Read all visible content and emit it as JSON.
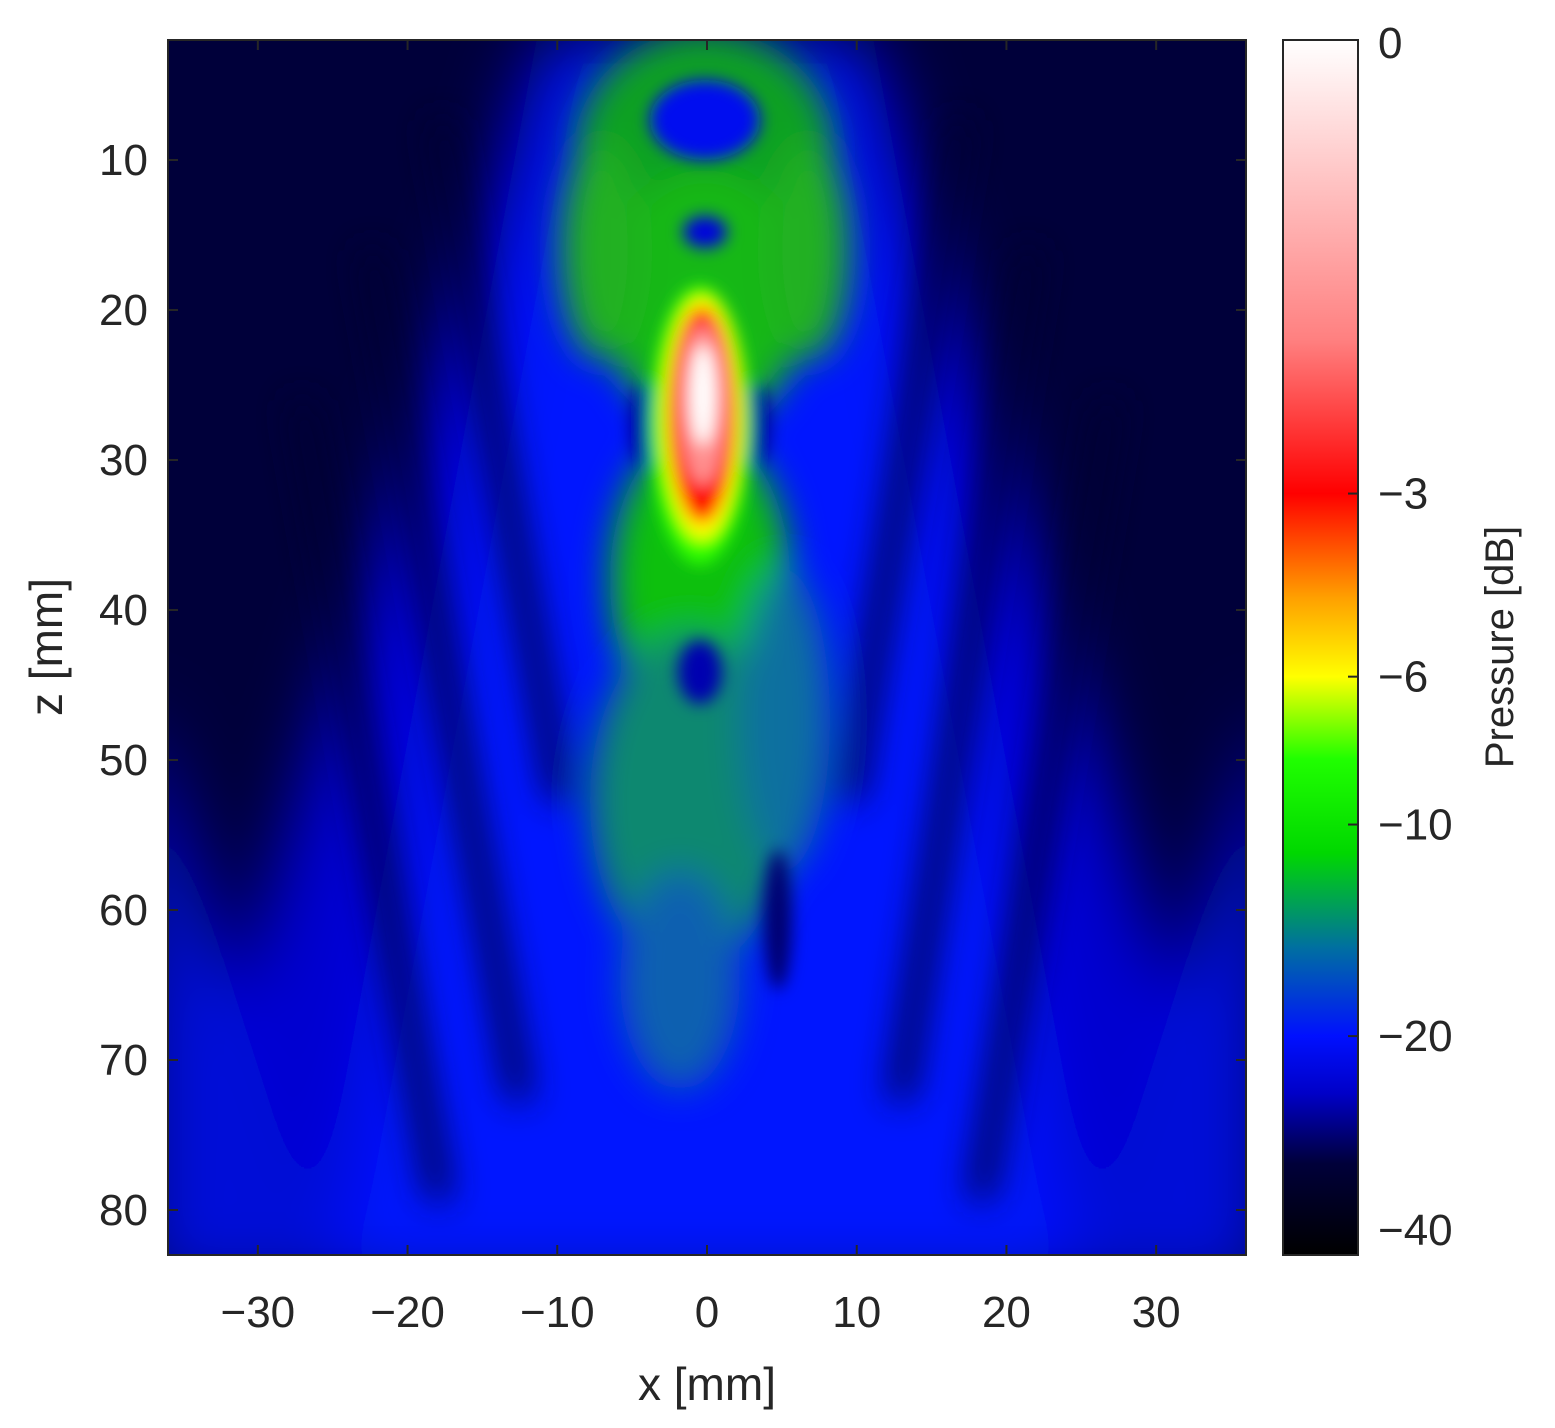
{
  "chart_data": {
    "type": "heatmap",
    "title": "",
    "xlabel": "x [mm]",
    "ylabel": "z [mm]",
    "xlim": [
      -36,
      36
    ],
    "ylim": [
      2,
      83
    ],
    "y_reversed": true,
    "x_ticks": [
      -30,
      -20,
      -10,
      0,
      10,
      20,
      30
    ],
    "x_tick_labels": [
      "−30",
      "−20",
      "−10",
      "0",
      "10",
      "20",
      "30"
    ],
    "y_ticks": [
      10,
      20,
      30,
      40,
      50,
      60,
      70,
      80
    ],
    "y_tick_labels": [
      "10",
      "20",
      "30",
      "40",
      "50",
      "60",
      "70",
      "80"
    ],
    "grid": false,
    "colorbar": {
      "label": "Pressure [dB]",
      "range": [
        -40,
        0
      ],
      "scale": "log-compressed",
      "ticks": [
        0,
        -3,
        -6,
        -10,
        -20,
        -40
      ],
      "tick_labels": [
        "0",
        "−3",
        "−6",
        "−10",
        "−20",
        "−40"
      ],
      "colormap": [
        {
          "level": -40,
          "color": "#000000"
        },
        {
          "level": -30,
          "color": "#00003a"
        },
        {
          "level": -24,
          "color": "#0000c8"
        },
        {
          "level": -20,
          "color": "#0010ff"
        },
        {
          "level": -15,
          "color": "#0070a0"
        },
        {
          "level": -11,
          "color": "#00d800"
        },
        {
          "level": -8,
          "color": "#20ff00"
        },
        {
          "level": -6,
          "color": "#ffff00"
        },
        {
          "level": -4.5,
          "color": "#ffa000"
        },
        {
          "level": -3,
          "color": "#ff0000"
        },
        {
          "level": -1.5,
          "color": "#ff8080"
        },
        {
          "level": 0,
          "color": "#ffffff"
        }
      ]
    },
    "focal_peak": {
      "x": 0,
      "z": 26,
      "level": 0
    }
  }
}
